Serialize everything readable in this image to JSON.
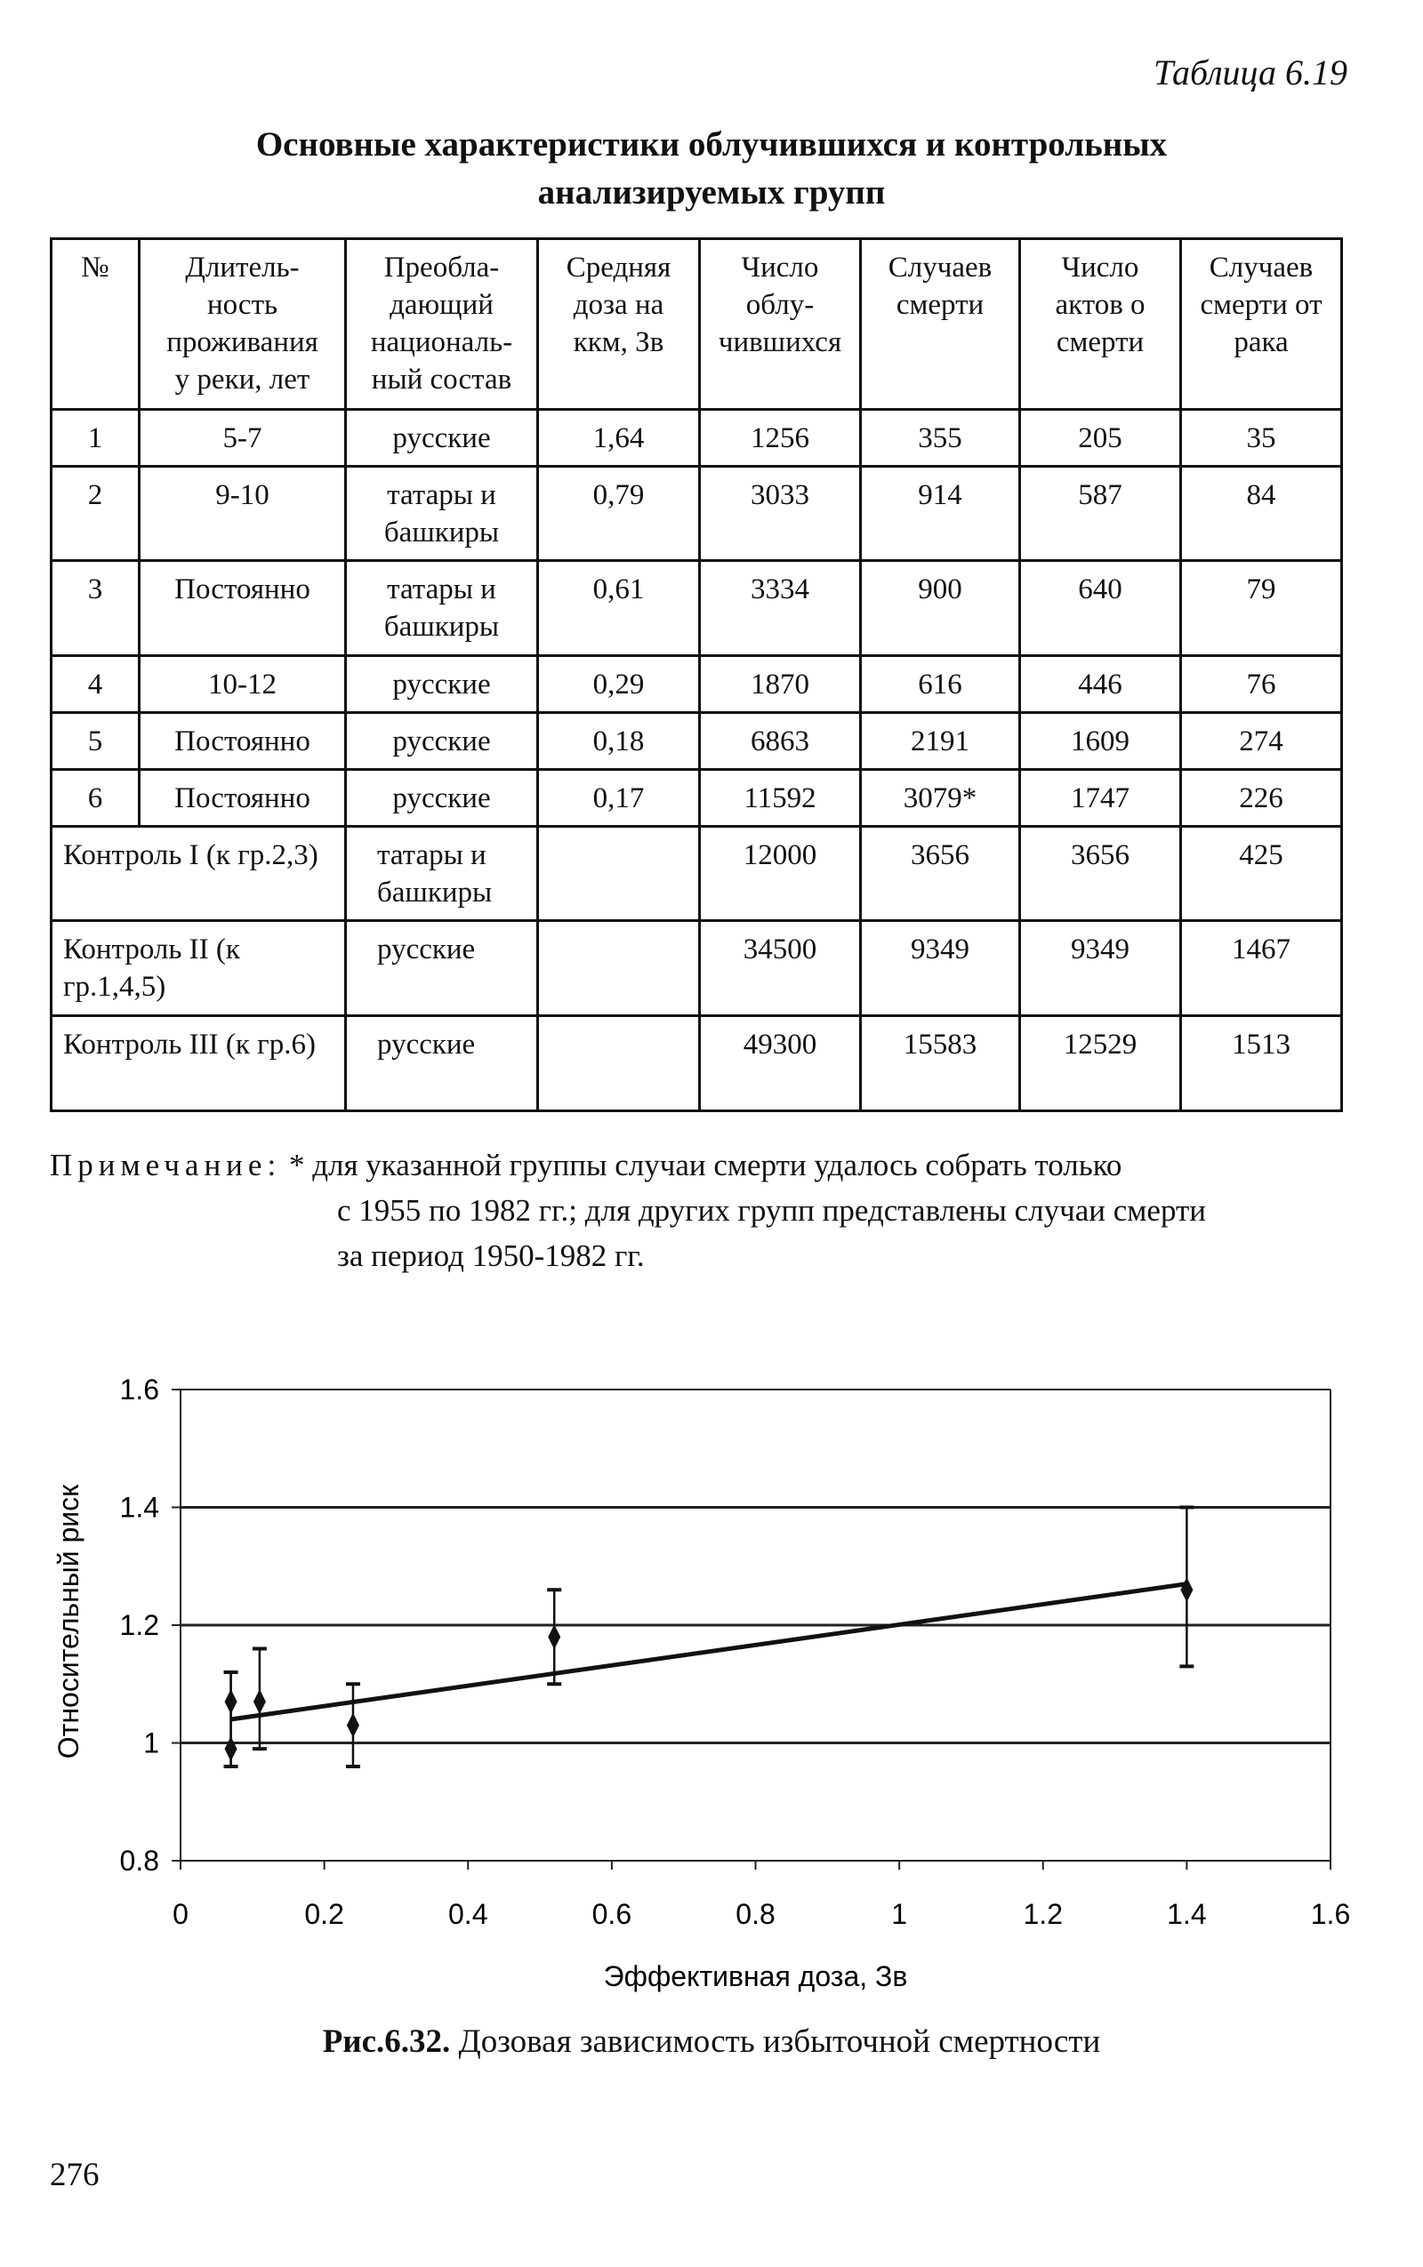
{
  "table_label": "Таблица 6.19",
  "title": [
    "Основные характеристики облучившихся и контрольных",
    "анализируемых групп"
  ],
  "headers": [
    "№",
    "Длитель-ность проживания у реки, лет",
    "Преобла-дающий националь-ный состав",
    "Средняя доза на ккм, Зв",
    "Число облу-чившихся",
    "Случаев смерти",
    "Число актов о смерти",
    "Случаев смерти от рака"
  ],
  "headers_lines": [
    [
      "№"
    ],
    [
      "Длитель-",
      "ность",
      "проживания",
      "у реки, лет"
    ],
    [
      "Преобла-",
      "дающий",
      "националь-",
      "ный состав"
    ],
    [
      "Средняя",
      "доза на",
      "ккм, Зв"
    ],
    [
      "Число",
      "облу-",
      "чившихся"
    ],
    [
      "Случаев",
      "смерти"
    ],
    [
      "Число",
      "актов о",
      "смерти"
    ],
    [
      "Случаев",
      "смерти от",
      "рака"
    ]
  ],
  "rows": [
    [
      "1",
      "5-7",
      "русские",
      "1,64",
      "1256",
      "355",
      "205",
      "35"
    ],
    [
      "2",
      "9-10",
      "татары и башкиры",
      "0,79",
      "3033",
      "914",
      "587",
      "84"
    ],
    [
      "3",
      "Постоянно",
      "татары и башкиры",
      "0,61",
      "3334",
      "900",
      "640",
      "79"
    ],
    [
      "4",
      "10-12",
      "русские",
      "0,29",
      "1870",
      "616",
      "446",
      "76"
    ],
    [
      "5",
      "Постоянно",
      "русские",
      "0,18",
      "6863",
      "2191",
      "1609",
      "274"
    ],
    [
      "6",
      "Постоянно",
      "русские",
      "0,17",
      "11592",
      "3079*",
      "1747",
      "226"
    ]
  ],
  "control_rows": [
    [
      "Контроль I (к гр.2,3)",
      "татары и башкиры",
      "",
      "12000",
      "3656",
      "3656",
      "425"
    ],
    [
      "Контроль II (к гр.1,4,5)",
      "русские",
      "",
      "34500",
      "9349",
      "9349",
      "1467"
    ],
    [
      "Контроль III (к гр.6)",
      "русские",
      "",
      "49300",
      "15583",
      "12529",
      "1513"
    ]
  ],
  "note": {
    "label": "Примечание:",
    "text1": "* для указанной группы случаи смерти удалось собрать только",
    "text2": "с 1955 по 1982 гг.; для других групп представлены случаи смерти",
    "text3": "за период 1950-1982 гг."
  },
  "chart_data": {
    "type": "scatter",
    "title": "",
    "xlabel": "Эффективная доза, Зв",
    "ylabel": "Относительный риск",
    "xlim": [
      0,
      1.6
    ],
    "ylim": [
      0.8,
      1.6
    ],
    "xticks": [
      "0",
      "0.2",
      "0.4",
      "0.6",
      "0.8",
      "1",
      "1.2",
      "1.4",
      "1.6"
    ],
    "yticks": [
      "0.8",
      "1",
      "1.2",
      "1.4",
      "1.6"
    ],
    "grid": "horizontal",
    "points": [
      {
        "x": 0.07,
        "y": 1.07,
        "low": 0.96,
        "high": 1.12
      },
      {
        "x": 0.07,
        "y": 0.99,
        "low": 0.96,
        "high": 1.12
      },
      {
        "x": 0.11,
        "y": 1.07,
        "low": 0.99,
        "high": 1.16
      },
      {
        "x": 0.24,
        "y": 1.03,
        "low": 0.96,
        "high": 1.1
      },
      {
        "x": 0.52,
        "y": 1.18,
        "low": 1.1,
        "high": 1.26
      },
      {
        "x": 1.4,
        "y": 1.26,
        "low": 1.13,
        "high": 1.4
      }
    ],
    "trendline": {
      "x": [
        0.07,
        1.4
      ],
      "y": [
        1.04,
        1.27
      ]
    }
  },
  "caption": {
    "bold": "Рис.6.32.",
    "text": " Дозовая зависимость избыточной смертности"
  },
  "page_number": "276"
}
